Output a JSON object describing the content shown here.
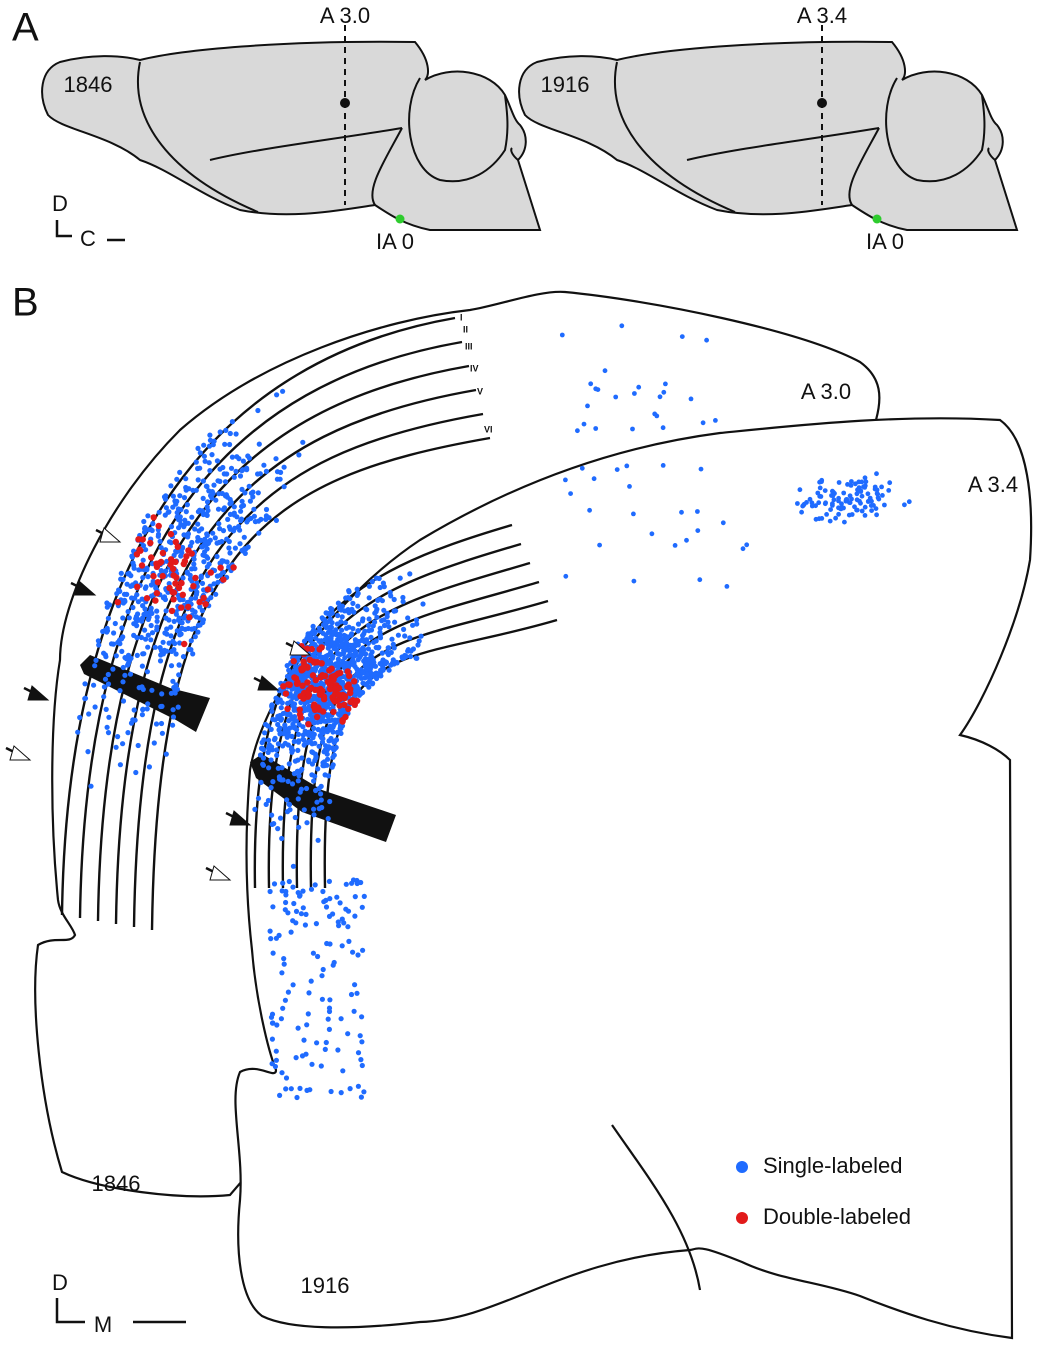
{
  "panel_a": {
    "label": "A",
    "brains": [
      {
        "id": "1846",
        "section": "A 3.0",
        "landmark": "IA 0"
      },
      {
        "id": "1916",
        "section": "A 3.4",
        "landmark": "IA 0"
      }
    ],
    "orientation": {
      "dorsal": "D",
      "caudal": "C"
    }
  },
  "panel_b": {
    "label": "B",
    "sections": [
      {
        "id": "1846",
        "level": "A 3.0"
      },
      {
        "id": "1916",
        "level": "A 3.4"
      }
    ],
    "layers": [
      "I",
      "II",
      "III",
      "IV",
      "V",
      "VI"
    ],
    "legend": [
      {
        "label": "Single-labeled",
        "color": "#1f6bff"
      },
      {
        "label": "Double-labeled",
        "color": "#e21a1a"
      }
    ],
    "orientation": {
      "dorsal": "D",
      "medial": "M"
    }
  }
}
